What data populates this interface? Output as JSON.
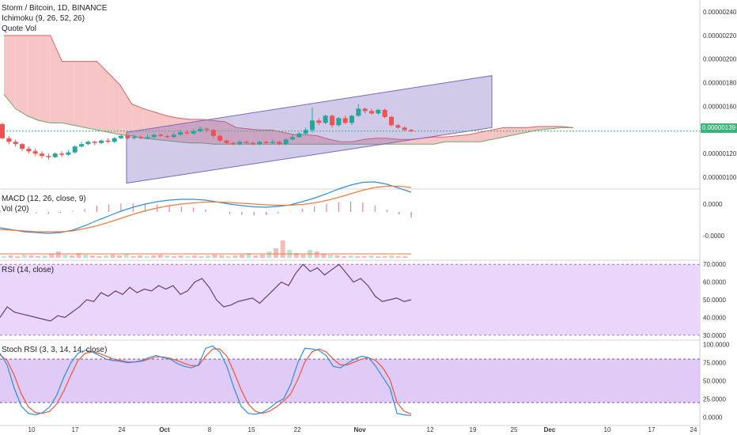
{
  "header": {
    "symbol_line": "Storm / Bitcoin, 1D, BINANCE",
    "ichimoku_label": "Ichimoku (9, 26, 52, 26)",
    "quote_vol_label": "Quote Vol",
    "macd_label": "MACD (12, 26, close, 9)",
    "vol_label": "Vol (20)",
    "rsi_label": "RSI (14, close)",
    "stoch_label": "Stoch RSI (3, 3, 14, 14, close)"
  },
  "current_price": "0.00000139",
  "colors": {
    "up": "#26a69a",
    "down": "#ef5350",
    "cloud_red": "#f7c5c5",
    "cloud_green": "#c8ead8",
    "channel": "#7a68c0",
    "rsi_band": "#ead6fb",
    "rsi_line": "#6b3f6b",
    "stoch_k": "#2e8ddf",
    "stoch_d": "#f0553b",
    "macd_line": "#2e8ddf",
    "signal_line": "#f07a3a",
    "price_badge": "#3bb37a"
  },
  "chart_data": [
    {
      "type": "candlestick",
      "panel": "price",
      "title": "Storm / Bitcoin, 1D, BINANCE",
      "y_ticks": [
        "0.00000240",
        "0.00000220",
        "0.00000200",
        "0.00000180",
        "0.00000160",
        "0.00000140",
        "0.00000120",
        "0.00000100"
      ],
      "ylim": [
        9e-07,
        2.5e-06
      ],
      "x_tick_labels": [
        "10",
        "17",
        "24",
        "Oct",
        "8",
        "15",
        "22",
        "Nov",
        "12",
        "19",
        "25",
        "Dec",
        "10",
        "17",
        "24"
      ],
      "candles": [
        [
          1.45e-06,
          1.33e-06,
          1.46e-06,
          1.32e-06
        ],
        [
          1.33e-06,
          1.3e-06,
          1.35e-06,
          1.28e-06
        ],
        [
          1.3e-06,
          1.28e-06,
          1.32e-06,
          1.26e-06
        ],
        [
          1.28e-06,
          1.24e-06,
          1.29e-06,
          1.22e-06
        ],
        [
          1.24e-06,
          1.22e-06,
          1.26e-06,
          1.2e-06
        ],
        [
          1.22e-06,
          1.2e-06,
          1.24e-06,
          1.18e-06
        ],
        [
          1.2e-06,
          1.18e-06,
          1.22e-06,
          1.16e-06
        ],
        [
          1.18e-06,
          1.17e-06,
          1.2e-06,
          1.15e-06
        ],
        [
          1.17e-06,
          1.2e-06,
          1.21e-06,
          1.16e-06
        ],
        [
          1.2e-06,
          1.19e-06,
          1.22e-06,
          1.17e-06
        ],
        [
          1.19e-06,
          1.21e-06,
          1.23e-06,
          1.18e-06
        ],
        [
          1.21e-06,
          1.26e-06,
          1.27e-06,
          1.2e-06
        ],
        [
          1.26e-06,
          1.28e-06,
          1.3e-06,
          1.25e-06
        ],
        [
          1.28e-06,
          1.3e-06,
          1.31e-06,
          1.27e-06
        ],
        [
          1.3e-06,
          1.29e-06,
          1.31e-06,
          1.27e-06
        ],
        [
          1.29e-06,
          1.31e-06,
          1.32e-06,
          1.28e-06
        ],
        [
          1.31e-06,
          1.3e-06,
          1.33e-06,
          1.29e-06
        ],
        [
          1.3e-06,
          1.33e-06,
          1.34e-06,
          1.29e-06
        ],
        [
          1.33e-06,
          1.35e-06,
          1.36e-06,
          1.32e-06
        ],
        [
          1.35e-06,
          1.33e-06,
          1.36e-06,
          1.32e-06
        ],
        [
          1.33e-06,
          1.34e-06,
          1.36e-06,
          1.32e-06
        ],
        [
          1.34e-06,
          1.33e-06,
          1.35e-06,
          1.32e-06
        ],
        [
          1.33e-06,
          1.34e-06,
          1.36e-06,
          1.32e-06
        ],
        [
          1.34e-06,
          1.36e-06,
          1.37e-06,
          1.33e-06
        ],
        [
          1.36e-06,
          1.35e-06,
          1.37e-06,
          1.34e-06
        ],
        [
          1.35e-06,
          1.34e-06,
          1.36e-06,
          1.33e-06
        ],
        [
          1.34e-06,
          1.36e-06,
          1.38e-06,
          1.33e-06
        ],
        [
          1.36e-06,
          1.38e-06,
          1.4e-06,
          1.35e-06
        ],
        [
          1.38e-06,
          1.37e-06,
          1.4e-06,
          1.36e-06
        ],
        [
          1.37e-06,
          1.39e-06,
          1.41e-06,
          1.36e-06
        ],
        [
          1.39e-06,
          1.41e-06,
          1.43e-06,
          1.38e-06
        ],
        [
          1.41e-06,
          1.4e-06,
          1.42e-06,
          1.38e-06
        ],
        [
          1.4e-06,
          1.35e-06,
          1.41e-06,
          1.33e-06
        ],
        [
          1.35e-06,
          1.31e-06,
          1.36e-06,
          1.3e-06
        ],
        [
          1.31e-06,
          1.29e-06,
          1.32e-06,
          1.28e-06
        ],
        [
          1.29e-06,
          1.28e-06,
          1.3e-06,
          1.27e-06
        ],
        [
          1.28e-06,
          1.3e-06,
          1.31e-06,
          1.27e-06
        ],
        [
          1.3e-06,
          1.29e-06,
          1.31e-06,
          1.28e-06
        ],
        [
          1.29e-06,
          1.28e-06,
          1.3e-06,
          1.27e-06
        ],
        [
          1.28e-06,
          1.3e-06,
          1.31e-06,
          1.27e-06
        ],
        [
          1.3e-06,
          1.29e-06,
          1.31e-06,
          1.28e-06
        ],
        [
          1.29e-06,
          1.3e-06,
          1.32e-06,
          1.28e-06
        ],
        [
          1.3e-06,
          1.28e-06,
          1.31e-06,
          1.27e-06
        ],
        [
          1.28e-06,
          1.32e-06,
          1.33e-06,
          1.27e-06
        ],
        [
          1.32e-06,
          1.34e-06,
          1.36e-06,
          1.31e-06
        ],
        [
          1.34e-06,
          1.37e-06,
          1.38e-06,
          1.33e-06
        ],
        [
          1.37e-06,
          1.4e-06,
          1.42e-06,
          1.36e-06
        ],
        [
          1.4e-06,
          1.48e-06,
          1.59e-06,
          1.38e-06
        ],
        [
          1.48e-06,
          1.46e-06,
          1.5e-06,
          1.44e-06
        ],
        [
          1.46e-06,
          1.52e-06,
          1.53e-06,
          1.45e-06
        ],
        [
          1.52e-06,
          1.44e-06,
          1.53e-06,
          1.42e-06
        ],
        [
          1.44e-06,
          1.5e-06,
          1.51e-06,
          1.43e-06
        ],
        [
          1.5e-06,
          1.46e-06,
          1.52e-06,
          1.45e-06
        ],
        [
          1.46e-06,
          1.52e-06,
          1.53e-06,
          1.44e-06
        ],
        [
          1.52e-06,
          1.58e-06,
          1.62e-06,
          1.51e-06
        ],
        [
          1.58e-06,
          1.56e-06,
          1.59e-06,
          1.54e-06
        ],
        [
          1.56e-06,
          1.54e-06,
          1.58e-06,
          1.53e-06
        ],
        [
          1.54e-06,
          1.57e-06,
          1.58e-06,
          1.53e-06
        ],
        [
          1.57e-06,
          1.51e-06,
          1.58e-06,
          1.5e-06
        ],
        [
          1.51e-06,
          1.44e-06,
          1.52e-06,
          1.43e-06
        ],
        [
          1.44e-06,
          1.42e-06,
          1.45e-06,
          1.41e-06
        ],
        [
          1.42e-06,
          1.4e-06,
          1.43e-06,
          1.39e-06
        ],
        [
          1.4e-06,
          1.39e-06,
          1.41e-06,
          1.38e-06
        ]
      ],
      "channel": {
        "upper": [
          [
            1.38e-06,
            0
          ],
          [
            1.86e-06,
            1
          ]
        ],
        "lower": [
          [
            9.5e-07,
            0
          ],
          [
            1.42e-06,
            1
          ]
        ]
      },
      "span_a": [
        2.2e-06,
        2.2e-06,
        2.2e-06,
        2.2e-06,
        2.2e-06,
        1.98e-06,
        1.98e-06,
        1.98e-06,
        1.98e-06,
        1.88e-06,
        1.78e-06,
        1.62e-06,
        1.58e-06,
        1.55e-06,
        1.52e-06,
        1.5e-06,
        1.49e-06,
        1.49e-06,
        1.48e-06,
        1.47e-06,
        1.42e-06,
        1.41e-06,
        1.4e-06,
        1.4e-06,
        1.38e-06,
        1.36e-06,
        1.36e-06,
        1.35e-06,
        1.32e-06,
        1.3e-06,
        1.3e-06,
        1.32e-06,
        1.33e-06,
        1.33e-06,
        1.32e-06,
        1.32e-06,
        1.33e-06,
        1.34e-06,
        1.34e-06,
        1.35e-06,
        1.36e-06,
        1.38e-06,
        1.4e-06,
        1.42e-06,
        1.42e-06,
        1.42e-06,
        1.43e-06,
        1.43e-06,
        1.43e-06,
        1.42e-06
      ],
      "span_b": [
        1.7e-06,
        1.58e-06,
        1.52e-06,
        1.48e-06,
        1.46e-06,
        1.46e-06,
        1.44e-06,
        1.42e-06,
        1.4e-06,
        1.38e-06,
        1.36e-06,
        1.35e-06,
        1.33e-06,
        1.32e-06,
        1.31e-06,
        1.3e-06,
        1.29e-06,
        1.29e-06,
        1.28e-06,
        1.28e-06,
        1.28e-06,
        1.28e-06,
        1.28e-06,
        1.28e-06,
        1.28e-06,
        1.28e-06,
        1.28e-06,
        1.28e-06,
        1.28e-06,
        1.28e-06,
        1.28e-06,
        1.28e-06,
        1.28e-06,
        1.28e-06,
        1.28e-06,
        1.28e-06,
        1.28e-06,
        1.28e-06,
        1.3e-06,
        1.3e-06,
        1.3e-06,
        1.3e-06,
        1.32e-06,
        1.34e-06,
        1.36e-06,
        1.38e-06,
        1.4e-06,
        1.41e-06,
        1.42e-06,
        1.42e-06
      ]
    },
    {
      "type": "line",
      "panel": "macd",
      "title": "MACD (12, 26, close, 9)",
      "y_ticks": [
        "0.0000",
        "-0.0000"
      ],
      "macd": [
        -0.6,
        -0.65,
        -0.7,
        -0.72,
        -0.74,
        -0.72,
        -0.66,
        -0.55,
        -0.42,
        -0.3,
        -0.18,
        -0.08,
        0.0,
        0.06,
        0.1,
        0.12,
        0.12,
        0.1,
        0.05,
        0.0,
        -0.04,
        -0.07,
        -0.08,
        -0.06,
        -0.02,
        0.06,
        0.15,
        0.26,
        0.38,
        0.48,
        0.55,
        0.56,
        0.5,
        0.4,
        0.3
      ],
      "signal": [
        -0.64,
        -0.66,
        -0.68,
        -0.7,
        -0.7,
        -0.7,
        -0.68,
        -0.62,
        -0.55,
        -0.46,
        -0.36,
        -0.26,
        -0.17,
        -0.1,
        -0.04,
        0.0,
        0.03,
        0.05,
        0.05,
        0.04,
        0.02,
        0.0,
        -0.02,
        -0.03,
        -0.03,
        -0.01,
        0.03,
        0.09,
        0.17,
        0.26,
        0.35,
        0.42,
        0.45,
        0.45,
        0.42
      ]
    },
    {
      "type": "line",
      "panel": "rsi",
      "title": "RSI (14, close)",
      "y_ticks": [
        "70.0000",
        "60.0000",
        "50.0000",
        "40.0000",
        "30.0000"
      ],
      "ylim": [
        29,
        71
      ],
      "values": [
        40,
        46,
        43,
        42,
        41,
        40,
        39,
        38,
        41,
        40,
        43,
        46,
        50,
        49,
        54,
        52,
        55,
        53,
        57,
        54,
        56,
        55,
        58,
        56,
        58,
        53,
        55,
        60,
        62,
        57,
        50,
        46,
        47,
        49,
        50,
        51,
        48,
        52,
        56,
        60,
        58,
        65,
        70,
        66,
        68,
        64,
        67,
        70,
        65,
        60,
        62,
        58,
        52,
        49,
        50,
        51,
        49,
        50
      ]
    },
    {
      "type": "line",
      "panel": "stoch",
      "title": "Stoch RSI (3, 3, 14, 14, close)",
      "y_ticks": [
        "100.0000",
        "75.0000",
        "50.0000",
        "25.0000",
        "0.0000"
      ],
      "ylim": [
        -3,
        103
      ],
      "k": [
        88,
        72,
        40,
        15,
        5,
        3,
        6,
        14,
        30,
        55,
        75,
        88,
        92,
        90,
        85,
        80,
        78,
        77,
        75,
        76,
        78,
        82,
        85,
        82,
        80,
        74,
        70,
        68,
        72,
        95,
        98,
        90,
        70,
        40,
        15,
        5,
        4,
        6,
        12,
        20,
        25,
        45,
        75,
        95,
        94,
        92,
        85,
        70,
        68,
        74,
        80,
        84,
        82,
        70,
        55,
        40,
        5,
        3,
        2
      ],
      "d": [
        86,
        78,
        58,
        32,
        14,
        6,
        5,
        8,
        18,
        36,
        58,
        78,
        88,
        90,
        88,
        84,
        80,
        78,
        76,
        76,
        77,
        80,
        83,
        83,
        81,
        78,
        74,
        71,
        71,
        84,
        94,
        94,
        84,
        62,
        38,
        18,
        8,
        5,
        8,
        14,
        22,
        32,
        52,
        76,
        90,
        94,
        90,
        80,
        72,
        72,
        76,
        80,
        82,
        78,
        68,
        52,
        20,
        8,
        4
      ]
    }
  ]
}
